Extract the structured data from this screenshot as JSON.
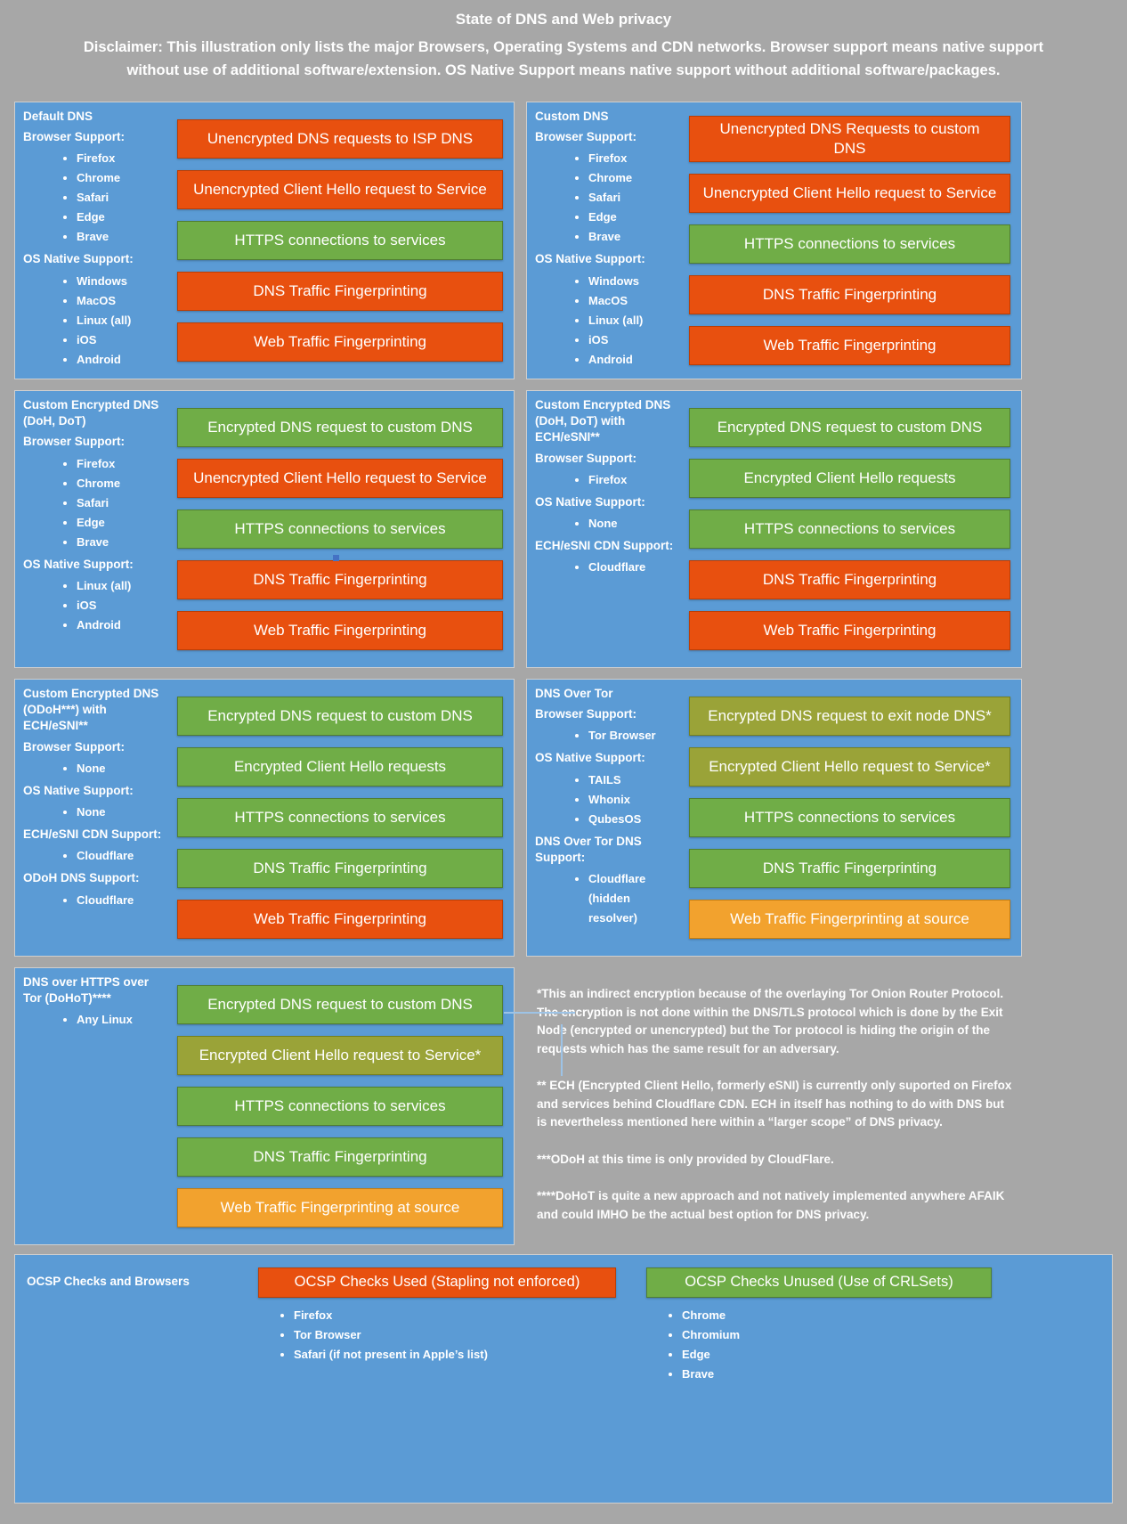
{
  "header": {
    "title": "State of DNS and Web privacy",
    "disclaimer": "Disclaimer: This illustration only lists the major Browsers, Operating Systems and CDN networks. Browser support means native support without use of additional software/extension. OS Native Support means native support without additional software/packages."
  },
  "colors": {
    "background": "#A7A7A7",
    "panel": "#5B9BD5",
    "bad": "#E8500F",
    "good": "#70AD47",
    "partial": "#9AA338",
    "warn": "#F2A22E"
  },
  "panels": [
    {
      "title": "Default DNS",
      "sections": [
        {
          "label": "Browser Support:",
          "items": [
            "Firefox",
            "Chrome",
            "Safari",
            "Edge",
            "Brave"
          ]
        },
        {
          "label": "OS Native Support:",
          "items": [
            "Windows",
            "MacOS",
            "Linux (all)",
            "iOS",
            "Android"
          ]
        }
      ],
      "bars": [
        {
          "label": "Unencrypted DNS requests to ISP DNS",
          "status": "bad"
        },
        {
          "label": "Unencrypted Client Hello request to Service",
          "status": "bad"
        },
        {
          "label": "HTTPS connections to services",
          "status": "good"
        },
        {
          "label": "DNS Traffic Fingerprinting",
          "status": "bad"
        },
        {
          "label": "Web Traffic Fingerprinting",
          "status": "bad"
        }
      ]
    },
    {
      "title": "Custom DNS",
      "sections": [
        {
          "label": "Browser Support:",
          "items": [
            "Firefox",
            "Chrome",
            "Safari",
            "Edge",
            "Brave"
          ]
        },
        {
          "label": "OS Native Support:",
          "items": [
            "Windows",
            "MacOS",
            "Linux (all)",
            "iOS",
            "Android"
          ]
        }
      ],
      "bars": [
        {
          "label": "Unencrypted DNS Requests to custom DNS",
          "status": "bad"
        },
        {
          "label": "Unencrypted Client Hello request to Service",
          "status": "bad"
        },
        {
          "label": "HTTPS connections to services",
          "status": "good"
        },
        {
          "label": "DNS Traffic Fingerprinting",
          "status": "bad"
        },
        {
          "label": "Web Traffic Fingerprinting",
          "status": "bad"
        }
      ]
    },
    {
      "title": "Custom Encrypted DNS (DoH, DoT)",
      "sections": [
        {
          "label": "Browser Support:",
          "items": [
            "Firefox",
            "Chrome",
            "Safari",
            "Edge",
            "Brave"
          ]
        },
        {
          "label": "OS Native Support:",
          "items": [
            "Linux (all)",
            "iOS",
            "Android"
          ]
        }
      ],
      "bars": [
        {
          "label": "Encrypted DNS request to custom DNS",
          "status": "good"
        },
        {
          "label": "Unencrypted Client Hello request to Service",
          "status": "bad"
        },
        {
          "label": "HTTPS connections to services",
          "status": "good"
        },
        {
          "label": "DNS Traffic Fingerprinting",
          "status": "bad"
        },
        {
          "label": "Web Traffic Fingerprinting",
          "status": "bad"
        }
      ]
    },
    {
      "title": "Custom Encrypted DNS (DoH, DoT) with ECH/eSNI**",
      "sections": [
        {
          "label": "Browser Support:",
          "items": [
            "Firefox"
          ]
        },
        {
          "label": "OS Native Support:",
          "items": [
            "None"
          ]
        },
        {
          "label": "ECH/eSNI CDN Support:",
          "items": [
            "Cloudflare"
          ]
        }
      ],
      "bars": [
        {
          "label": "Encrypted DNS request to custom DNS",
          "status": "good"
        },
        {
          "label": "Encrypted Client Hello requests",
          "status": "good"
        },
        {
          "label": "HTTPS connections to services",
          "status": "good"
        },
        {
          "label": "DNS Traffic Fingerprinting",
          "status": "bad"
        },
        {
          "label": "Web Traffic Fingerprinting",
          "status": "bad"
        }
      ]
    },
    {
      "title": "Custom Encrypted DNS (ODoH***) with ECH/eSNI**",
      "sections": [
        {
          "label": "Browser Support:",
          "items": [
            "None"
          ]
        },
        {
          "label": "OS Native Support:",
          "items": [
            "None"
          ]
        },
        {
          "label": "ECH/eSNI CDN Support:",
          "items": [
            "Cloudflare"
          ]
        },
        {
          "label": "ODoH DNS Support:",
          "items": [
            "Cloudflare"
          ]
        }
      ],
      "bars": [
        {
          "label": "Encrypted DNS request to custom DNS",
          "status": "good"
        },
        {
          "label": "Encrypted Client Hello requests",
          "status": "good"
        },
        {
          "label": "HTTPS connections to services",
          "status": "good"
        },
        {
          "label": "DNS Traffic Fingerprinting",
          "status": "good"
        },
        {
          "label": "Web Traffic Fingerprinting",
          "status": "bad"
        }
      ]
    },
    {
      "title": "DNS Over Tor",
      "sections": [
        {
          "label": "Browser Support:",
          "items": [
            "Tor Browser"
          ]
        },
        {
          "label": "OS Native Support:",
          "items": [
            "TAILS",
            "Whonix",
            "QubesOS"
          ]
        },
        {
          "label": "DNS Over Tor DNS Support:",
          "items": [
            "Cloudflare (hidden resolver)"
          ]
        }
      ],
      "bars": [
        {
          "label": "Encrypted DNS request to exit node DNS*",
          "status": "partial"
        },
        {
          "label": "Encrypted Client Hello request to Service*",
          "status": "partial"
        },
        {
          "label": "HTTPS connections to services",
          "status": "good"
        },
        {
          "label": "DNS Traffic Fingerprinting",
          "status": "good"
        },
        {
          "label": "Web Traffic Fingerprinting at source",
          "status": "warn"
        }
      ]
    },
    {
      "title": "DNS over HTTPS over Tor (DoHoT)****",
      "sections": [
        {
          "label": "",
          "items": [
            "Any Linux"
          ]
        }
      ],
      "bars": [
        {
          "label": "Encrypted DNS request to custom DNS",
          "status": "good"
        },
        {
          "label": "Encrypted Client Hello request to Service*",
          "status": "partial"
        },
        {
          "label": "HTTPS connections to services",
          "status": "good"
        },
        {
          "label": "DNS Traffic Fingerprinting",
          "status": "good"
        },
        {
          "label": "Web Traffic Fingerprinting at source",
          "status": "warn"
        }
      ]
    }
  ],
  "footnotes": [
    "*This an indirect encryption because of the overlaying Tor Onion Router Protocol. The encryption is not done within the DNS/TLS protocol which is done by the Exit Node (encrypted or unencrypted) but the Tor protocol is hiding the origin of the requests which has the same result for an adversary.",
    "** ECH (Encrypted Client Hello, formerly eSNI) is currently only suported on Firefox and services behind Cloudflare CDN. ECH in itself has nothing to do with DNS but is nevertheless mentioned here within a “larger scope” of DNS privacy.",
    "***ODoH at this time is only provided by CloudFlare.",
    "****DoHoT is quite a new approach and not natively implemented anywhere AFAIK and could IMHO be the actual best option for DNS privacy."
  ],
  "ocsp": {
    "title": "OCSP Checks and Browsers",
    "groups": [
      {
        "label": "OCSP Checks Used (Stapling not enforced)",
        "status": "bad",
        "items": [
          "Firefox",
          "Tor Browser",
          "Safari (if not present in Apple’s list)"
        ]
      },
      {
        "label": "OCSP Checks Unused (Use of CRLSets)",
        "status": "good",
        "items": [
          "Chrome",
          "Chromium",
          "Edge",
          "Brave"
        ]
      }
    ]
  }
}
